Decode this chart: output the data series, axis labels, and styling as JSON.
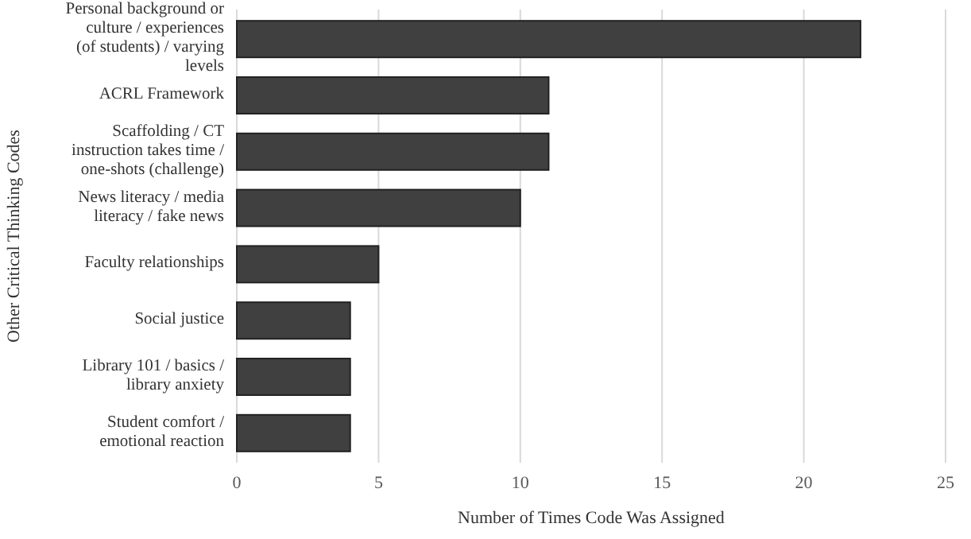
{
  "chart_data": {
    "type": "bar",
    "orientation": "horizontal",
    "xlabel": "Number of Times Code Was Assigned",
    "ylabel": "Other Critical Thinking Codes",
    "categories": [
      "Personal background or culture / experiences (of students) / varying levels",
      "ACRL Framework",
      "Scaffolding / CT instruction takes time / one-shots (challenge)",
      "News literacy / media literacy / fake news",
      "Faculty relationships",
      "Social justice",
      "Library 101 / basics / library anxiety",
      "Student comfort / emotional reaction"
    ],
    "values": [
      22,
      11,
      11,
      10,
      5,
      4,
      4,
      4
    ],
    "color": "#404040",
    "xlim": [
      0,
      25
    ],
    "xticks": [
      0,
      5,
      10,
      15,
      20,
      25
    ],
    "grid": "x"
  }
}
